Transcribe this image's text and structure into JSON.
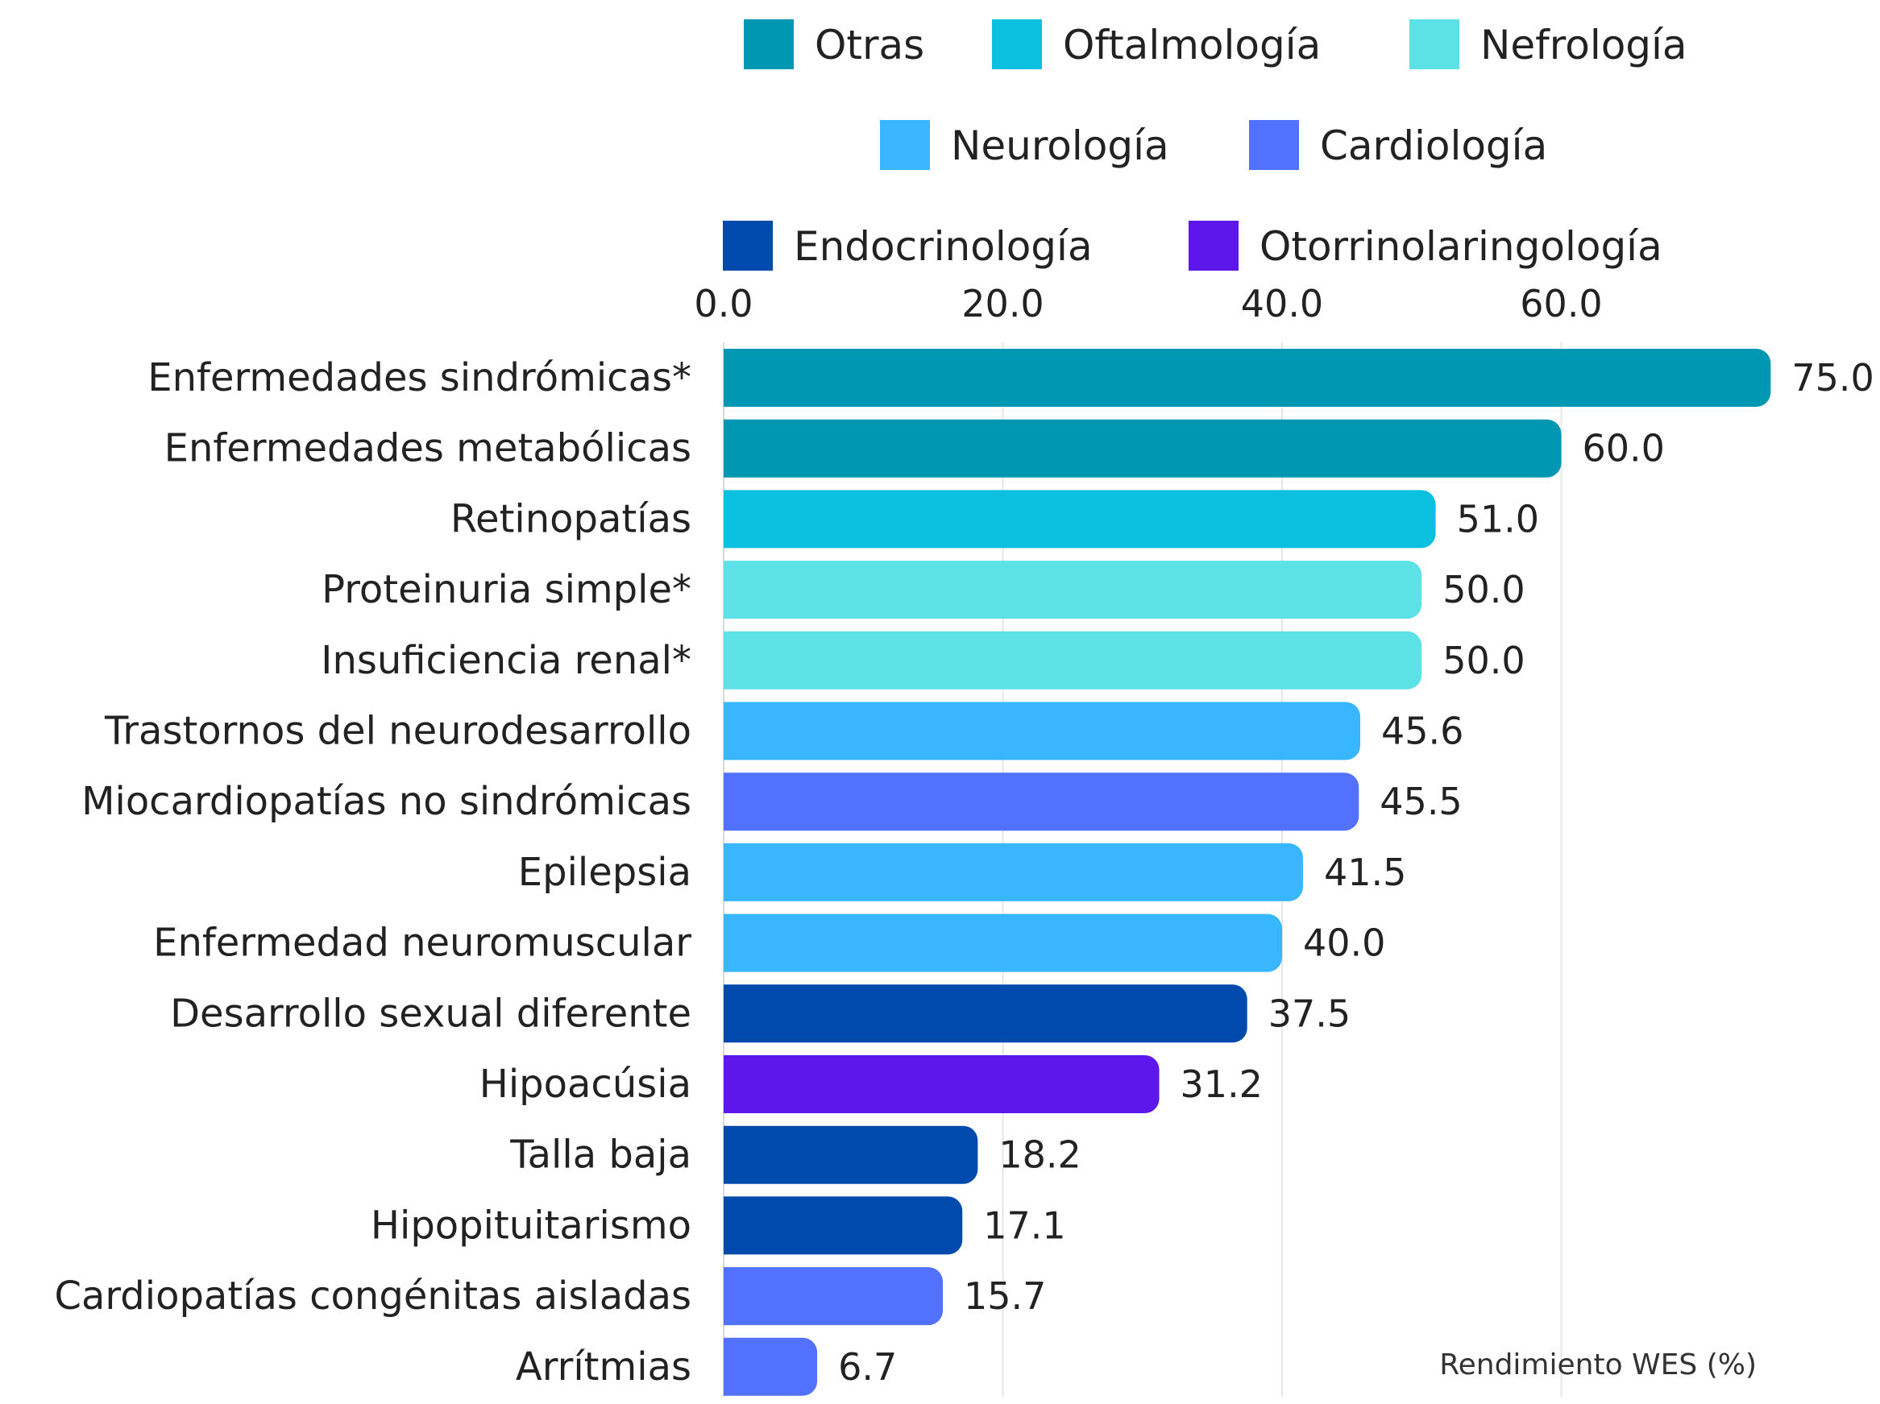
{
  "chart_data": {
    "type": "bar",
    "orientation": "horizontal",
    "xlabel": "Rendimiento WES (%)",
    "xlim": [
      0,
      75
    ],
    "xticks": [
      0,
      20,
      40,
      60
    ],
    "xtick_labels": [
      "0.0",
      "20.0",
      "40.0",
      "60.0"
    ],
    "grid": true,
    "legend_position": "top",
    "legend": [
      {
        "name": "Otras",
        "color": "#0097B2"
      },
      {
        "name": "Oftalmología",
        "color": "#0CC0DF"
      },
      {
        "name": "Nefrología",
        "color": "#5CE1E6"
      },
      {
        "name": "Neurología",
        "color": "#38B6FF"
      },
      {
        "name": "Cardiología",
        "color": "#5271FF"
      },
      {
        "name": "Endocrinología",
        "color": "#004AAD"
      },
      {
        "name": "Otorrinolaringología",
        "color": "#5E17EB"
      }
    ],
    "categories": [
      "Enfermedades sindrómicas*",
      "Enfermedades metabólicas",
      "Retinopatías",
      "Proteinuria simple*",
      "Insuficiencia renal*",
      "Trastornos del neurodesarrollo",
      "Miocardiopatías no sindrómicas",
      "Epilepsia",
      "Enfermedad neuromuscular",
      "Desarrollo sexual diferente",
      "Hipoacúsia",
      "Talla baja",
      "Hipopituitarismo",
      "Cardiopatías congénitas aisladas",
      "Arrítmias"
    ],
    "values": [
      75.0,
      60.0,
      51.0,
      50.0,
      50.0,
      45.6,
      45.5,
      41.5,
      40.0,
      37.5,
      31.2,
      18.2,
      17.1,
      15.7,
      6.7
    ],
    "value_labels": [
      "75.0",
      "60.0",
      "51.0",
      "50.0",
      "50.0",
      "45.6",
      "45.5",
      "41.5",
      "40.0",
      "37.5",
      "31.2",
      "18.2",
      "17.1",
      "15.7",
      "6.7"
    ],
    "groups": [
      "Otras",
      "Otras",
      "Oftalmología",
      "Nefrología",
      "Nefrología",
      "Neurología",
      "Cardiología",
      "Neurología",
      "Neurología",
      "Endocrinología",
      "Otorrinolaringología",
      "Endocrinología",
      "Endocrinología",
      "Cardiología",
      "Cardiología"
    ]
  }
}
